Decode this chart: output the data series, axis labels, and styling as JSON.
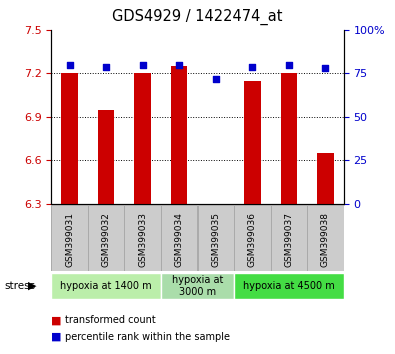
{
  "title": "GDS4929 / 1422474_at",
  "samples": [
    "GSM399031",
    "GSM399032",
    "GSM399033",
    "GSM399034",
    "GSM399035",
    "GSM399036",
    "GSM399037",
    "GSM399038"
  ],
  "transformed_counts": [
    7.2,
    6.95,
    7.2,
    7.25,
    6.3,
    7.15,
    7.2,
    6.65
  ],
  "percentile_ranks": [
    80,
    79,
    80,
    80,
    72,
    79,
    80,
    78
  ],
  "ylim_left": [
    6.3,
    7.5
  ],
  "ylim_right": [
    0,
    100
  ],
  "yticks_left": [
    6.3,
    6.6,
    6.9,
    7.2,
    7.5
  ],
  "yticks_right": [
    0,
    25,
    50,
    75,
    100
  ],
  "grid_values": [
    7.2,
    6.9,
    6.6
  ],
  "bar_color": "#cc0000",
  "dot_color": "#0000cc",
  "bar_bottom": 6.3,
  "group_spans": [
    {
      "start": 0,
      "end": 2,
      "label": "hypoxia at 1400 m",
      "color": "#bbeeaa"
    },
    {
      "start": 3,
      "end": 4,
      "label": "hypoxia at\n3000 m",
      "color": "#aaddaa"
    },
    {
      "start": 5,
      "end": 7,
      "label": "hypoxia at 4500 m",
      "color": "#44dd44"
    }
  ],
  "legend_items": [
    {
      "label": "transformed count",
      "color": "#cc0000"
    },
    {
      "label": "percentile rank within the sample",
      "color": "#0000cc"
    }
  ],
  "tick_label_color_left": "#cc0000",
  "tick_label_color_right": "#0000cc",
  "bar_width": 0.45,
  "sample_box_color": "#cccccc",
  "sample_box_edge_color": "#aaaaaa"
}
